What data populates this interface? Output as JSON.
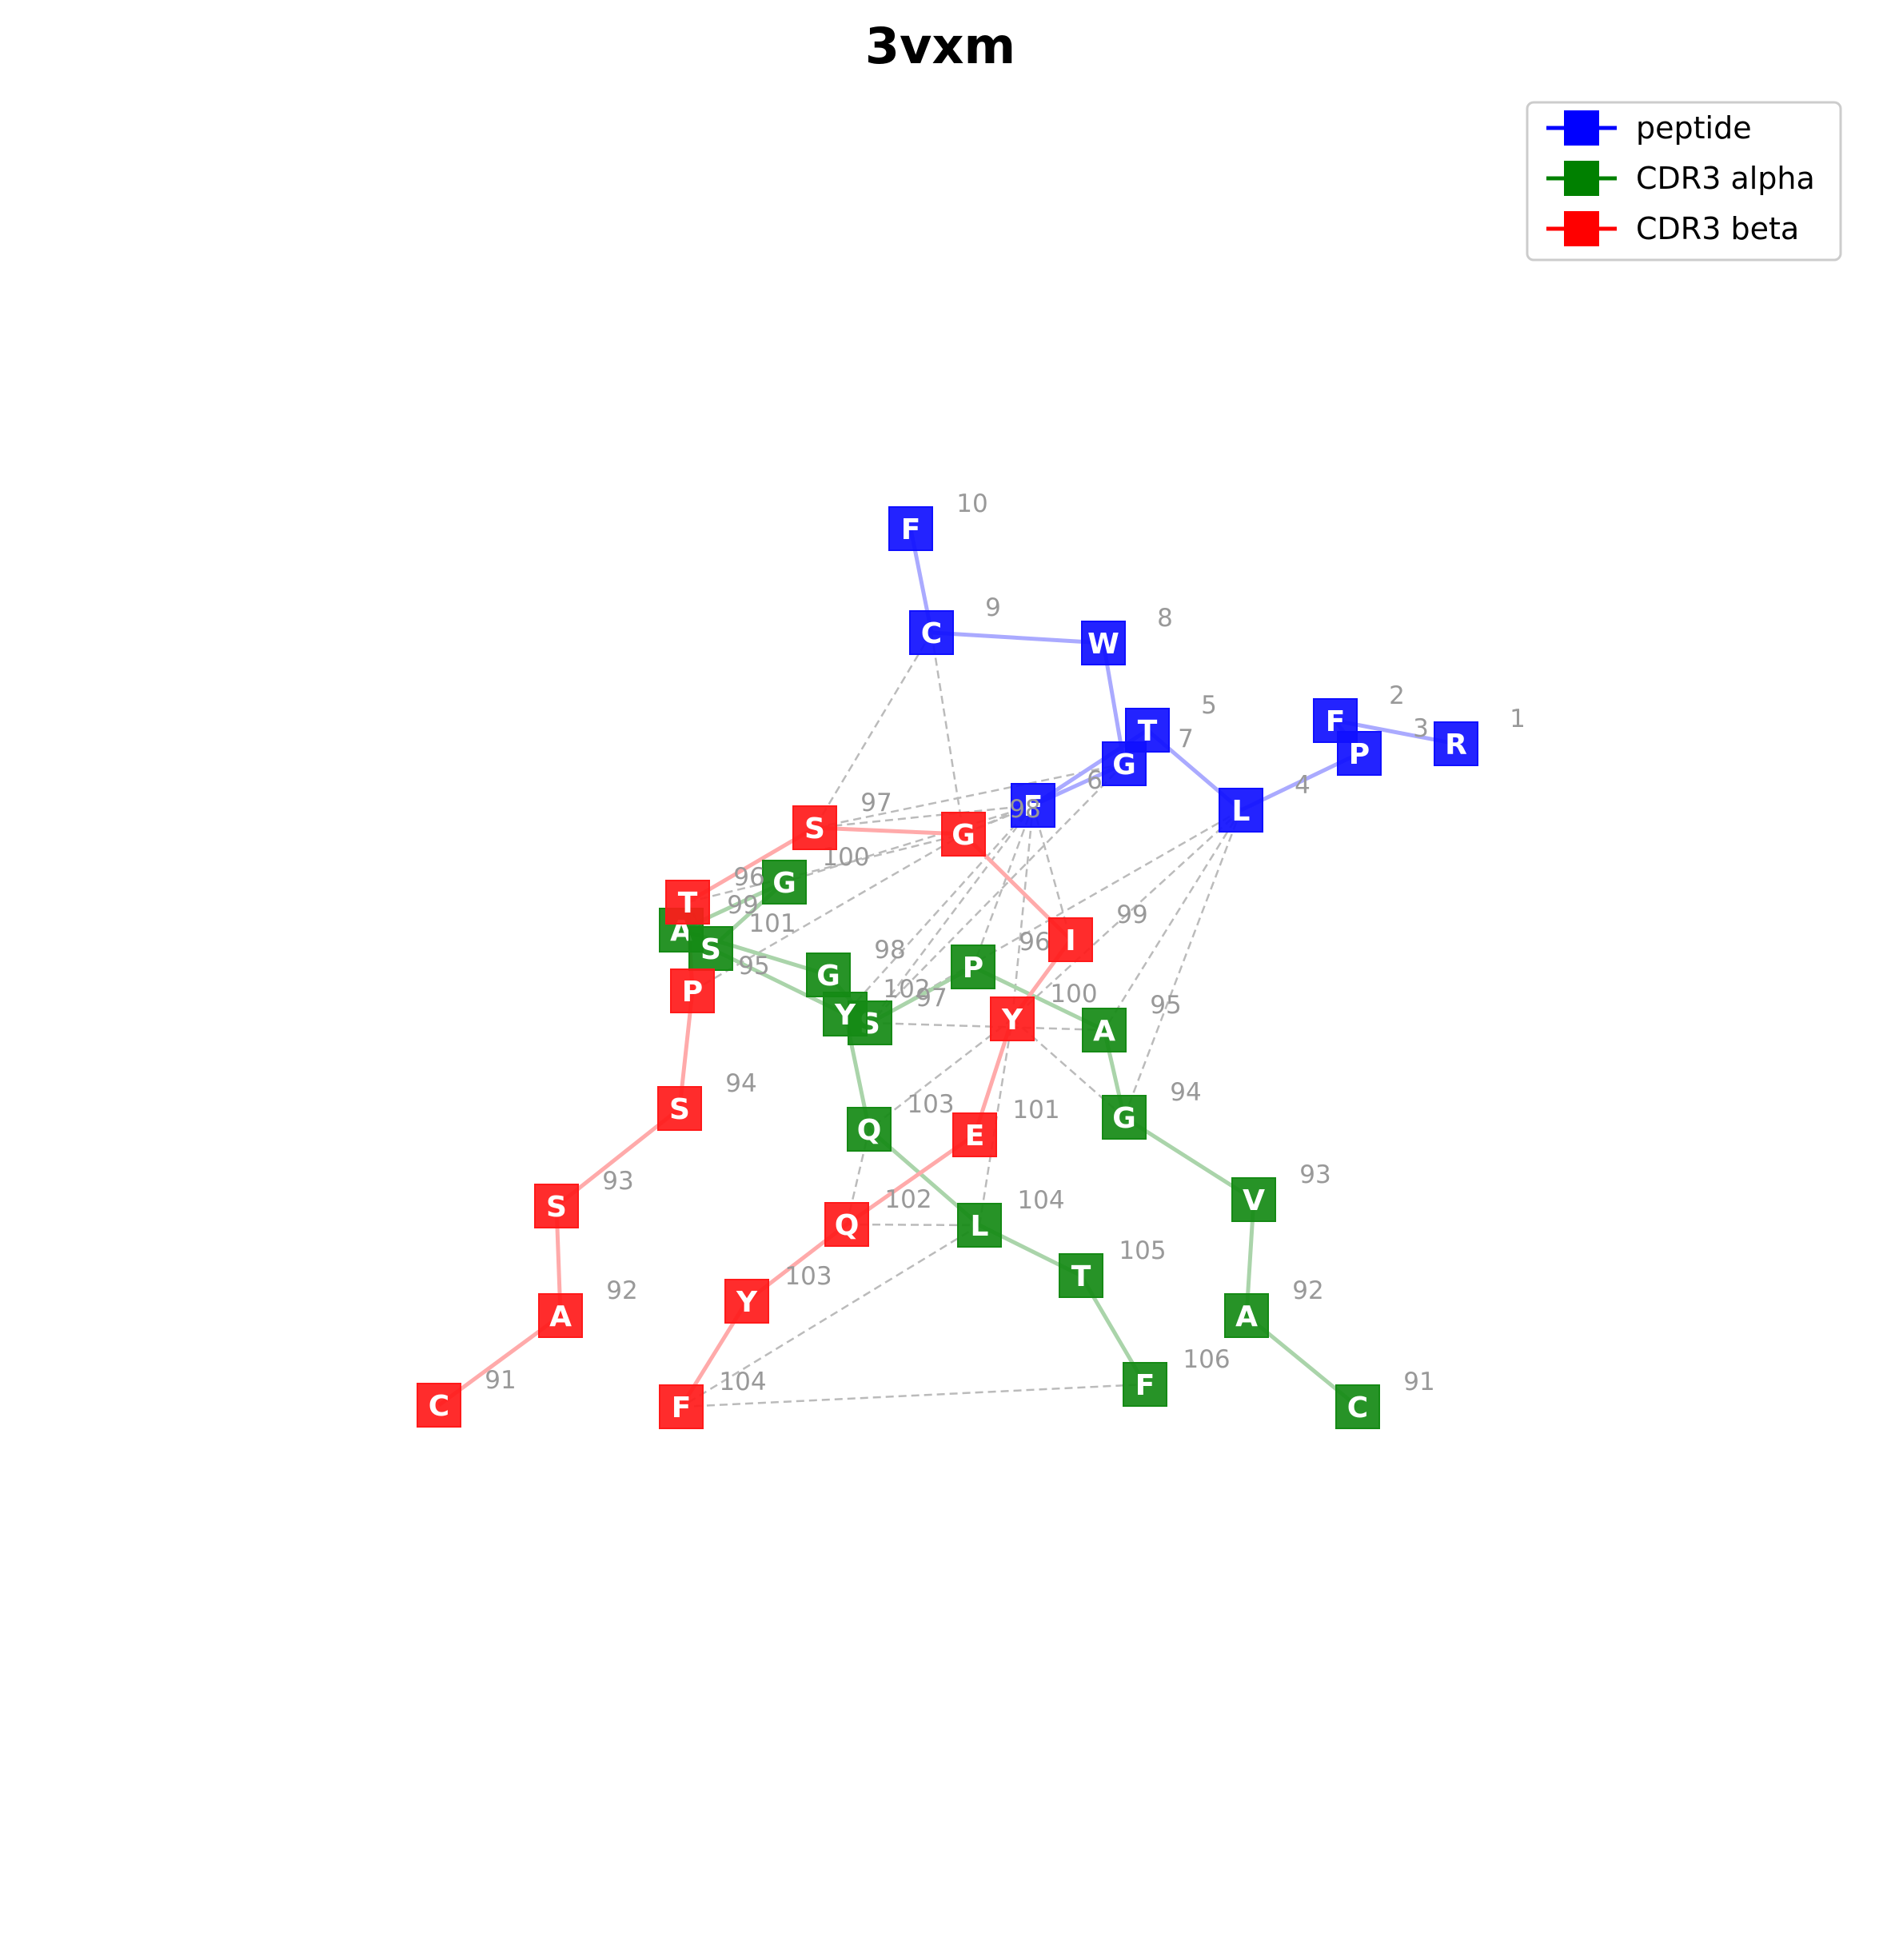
{
  "title": "3vxm",
  "legend": {
    "placement": "top-right",
    "items": [
      {
        "label": "peptide",
        "color": "#0000ff"
      },
      {
        "label": "CDR3 alpha",
        "color": "#008000"
      },
      {
        "label": "CDR3 beta",
        "color": "#ff0000"
      }
    ]
  },
  "colors": {
    "peptide": "#1010ff",
    "alpha": "#158a15",
    "beta": "#ff1a1a",
    "peptide_edge": "#aaaaff",
    "alpha_edge": "#aad4aa",
    "beta_edge": "#ffaaaa",
    "contact": "#bbbbbb"
  },
  "chains": [
    {
      "key": "peptide",
      "residues": [
        {
          "letter": "R",
          "num": "1"
        },
        {
          "letter": "F",
          "num": "2"
        },
        {
          "letter": "P",
          "num": "3"
        },
        {
          "letter": "L",
          "num": "4"
        },
        {
          "letter": "T",
          "num": "5"
        },
        {
          "letter": "F",
          "num": "6"
        },
        {
          "letter": "G",
          "num": "7"
        },
        {
          "letter": "W",
          "num": "8"
        },
        {
          "letter": "C",
          "num": "9"
        },
        {
          "letter": "F",
          "num": "10"
        }
      ]
    },
    {
      "key": "alpha",
      "residues": [
        {
          "letter": "C",
          "num": "91"
        },
        {
          "letter": "A",
          "num": "92"
        },
        {
          "letter": "V",
          "num": "93"
        },
        {
          "letter": "G",
          "num": "94"
        },
        {
          "letter": "A",
          "num": "95"
        },
        {
          "letter": "P",
          "num": "96"
        },
        {
          "letter": "S",
          "num": "97"
        },
        {
          "letter": "G",
          "num": "98"
        },
        {
          "letter": "A",
          "num": "99"
        },
        {
          "letter": "G",
          "num": "100"
        },
        {
          "letter": "S",
          "num": "101"
        },
        {
          "letter": "Y",
          "num": "102"
        },
        {
          "letter": "Q",
          "num": "103"
        },
        {
          "letter": "L",
          "num": "104"
        },
        {
          "letter": "T",
          "num": "105"
        },
        {
          "letter": "F",
          "num": "106"
        }
      ]
    },
    {
      "key": "beta",
      "residues": [
        {
          "letter": "C",
          "num": "91"
        },
        {
          "letter": "A",
          "num": "92"
        },
        {
          "letter": "S",
          "num": "93"
        },
        {
          "letter": "S",
          "num": "94"
        },
        {
          "letter": "P",
          "num": "95"
        },
        {
          "letter": "T",
          "num": "96"
        },
        {
          "letter": "S",
          "num": "97"
        },
        {
          "letter": "G",
          "num": "98"
        },
        {
          "letter": "I",
          "num": "99"
        },
        {
          "letter": "Y",
          "num": "100"
        },
        {
          "letter": "E",
          "num": "101"
        },
        {
          "letter": "Q",
          "num": "102"
        },
        {
          "letter": "Y",
          "num": "103"
        },
        {
          "letter": "F",
          "num": "104"
        }
      ]
    }
  ],
  "contacts": [
    [
      "peptide:9",
      "beta:97"
    ],
    [
      "peptide:9",
      "beta:98"
    ],
    [
      "peptide:7",
      "beta:97"
    ],
    [
      "peptide:7",
      "beta:98"
    ],
    [
      "peptide:7",
      "alpha:97"
    ],
    [
      "peptide:6",
      "beta:97"
    ],
    [
      "peptide:6",
      "beta:98"
    ],
    [
      "peptide:6",
      "beta:99"
    ],
    [
      "peptide:6",
      "beta:100"
    ],
    [
      "peptide:6",
      "alpha:96"
    ],
    [
      "peptide:6",
      "alpha:97"
    ],
    [
      "peptide:6",
      "alpha:102"
    ],
    [
      "peptide:6",
      "alpha:100"
    ],
    [
      "peptide:4",
      "beta:100"
    ],
    [
      "peptide:4",
      "alpha:95"
    ],
    [
      "peptide:4",
      "alpha:94"
    ],
    [
      "peptide:4",
      "alpha:97"
    ],
    [
      "beta:96",
      "alpha:101"
    ],
    [
      "beta:96",
      "beta:98"
    ],
    [
      "beta:95",
      "beta:98"
    ],
    [
      "beta:100",
      "alpha:103"
    ],
    [
      "beta:100",
      "alpha:94"
    ],
    [
      "alpha:97",
      "alpha:95"
    ],
    [
      "alpha:103",
      "beta:102"
    ],
    [
      "beta:102",
      "alpha:104"
    ],
    [
      "alpha:104",
      "beta:104"
    ],
    [
      "beta:104",
      "alpha:106"
    ],
    [
      "alpha:104",
      "beta:100"
    ]
  ]
}
